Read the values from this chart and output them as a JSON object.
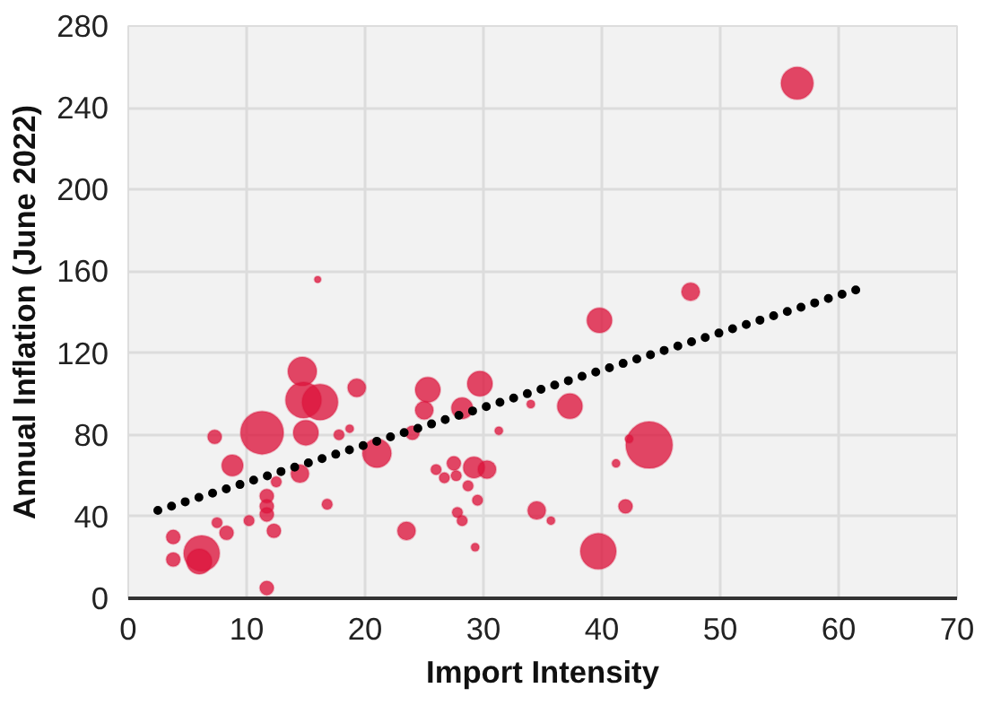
{
  "chart_data": {
    "type": "bubble",
    "xlabel": "Import Intensity",
    "ylabel": "Annual Inflation (June 2022)",
    "xlim": [
      0,
      70
    ],
    "ylim": [
      0,
      280
    ],
    "xticks": [
      0,
      10,
      20,
      30,
      40,
      50,
      60,
      70
    ],
    "yticks": [
      0,
      40,
      80,
      120,
      160,
      200,
      240,
      280
    ],
    "grid": true,
    "series": [
      {
        "color": "#dc143c",
        "x": [
          56.5,
          47.5,
          39.8,
          44,
          39.7,
          37.3,
          29.7,
          25.3,
          28.2,
          25,
          21,
          11.3,
          14.7,
          14.8,
          16.2,
          15,
          19.3,
          8.8,
          7.3,
          6.2,
          6,
          14.5,
          16.8,
          11.7,
          11.7,
          11.7,
          12.3,
          11.7,
          3.8,
          3.8,
          8.3,
          7.5,
          10.2,
          12.5,
          16,
          23.5,
          17.8,
          18.7,
          24,
          34,
          31.3,
          29.2,
          30.3,
          27.5,
          26,
          26.7,
          27.7,
          28.7,
          29.5,
          27.8,
          28.2,
          29.3,
          34.5,
          35.7,
          42,
          41.2,
          42.3
        ],
        "values": [
          252,
          150,
          136,
          75,
          23,
          94,
          105,
          102,
          93,
          92,
          71,
          81,
          111,
          97,
          96,
          81,
          103,
          65,
          79,
          22,
          18,
          61,
          46,
          50,
          45,
          41,
          33,
          5,
          30,
          19,
          32,
          37,
          38,
          57,
          156,
          33,
          80,
          83,
          81,
          95,
          82,
          64,
          63,
          66,
          63,
          59,
          60,
          55,
          48,
          42,
          38,
          25,
          43,
          38,
          45,
          66,
          78
        ],
        "sizes": [
          0.48,
          0.15,
          0.29,
          1,
          0.59,
          0.29,
          0.29,
          0.29,
          0.21,
          0.15,
          0.38,
          0.85,
          0.38,
          0.59,
          0.59,
          0.29,
          0.15,
          0.21,
          0.09,
          0.59,
          0.29,
          0.15,
          0.05,
          0.09,
          0.09,
          0.09,
          0.09,
          0.09,
          0.09,
          0.09,
          0.09,
          0.05,
          0.05,
          0.05,
          0.02,
          0.15,
          0.05,
          0.03,
          0.09,
          0.03,
          0.03,
          0.21,
          0.15,
          0.09,
          0.05,
          0.05,
          0.05,
          0.05,
          0.05,
          0.05,
          0.05,
          0.03,
          0.15,
          0.03,
          0.09,
          0.03,
          0.03
        ]
      },
      {
        "type": "line",
        "color": "#000000",
        "line_style": "dotted",
        "marker": "none",
        "x": [
          2.5,
          61.5
        ],
        "values": [
          43,
          151
        ]
      }
    ]
  }
}
